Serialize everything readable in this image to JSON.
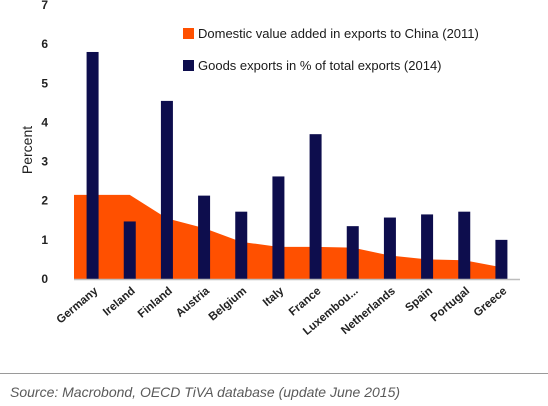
{
  "chart_data": {
    "type": "bar",
    "ylabel": "Percent",
    "ylim": [
      0,
      7
    ],
    "yticks": [
      0,
      1,
      2,
      3,
      4,
      5,
      6,
      7
    ],
    "grid": false,
    "legend_position": "top-right",
    "categories": [
      "Germany",
      "Ireland",
      "Finland",
      "Austria",
      "Belgium",
      "Italy",
      "France",
      "Luxembou...",
      "Netherlands",
      "Spain",
      "Portugal",
      "Greece"
    ],
    "series": [
      {
        "name": "Domestic value added in exports to China (2011)",
        "kind": "area",
        "color": "#ff5000",
        "values": [
          2.15,
          2.15,
          1.55,
          1.3,
          0.95,
          0.82,
          0.82,
          0.8,
          0.6,
          0.5,
          0.48,
          0.3
        ]
      },
      {
        "name": "Goods exports in % of total exports (2014)",
        "kind": "bar",
        "color": "#0d0d4d",
        "values": [
          5.8,
          1.47,
          4.55,
          2.13,
          1.72,
          2.62,
          3.7,
          1.35,
          1.57,
          1.65,
          1.72,
          1.0
        ]
      }
    ]
  },
  "source": "Source: Macrobond, OECD TiVA database (update June 2015)"
}
